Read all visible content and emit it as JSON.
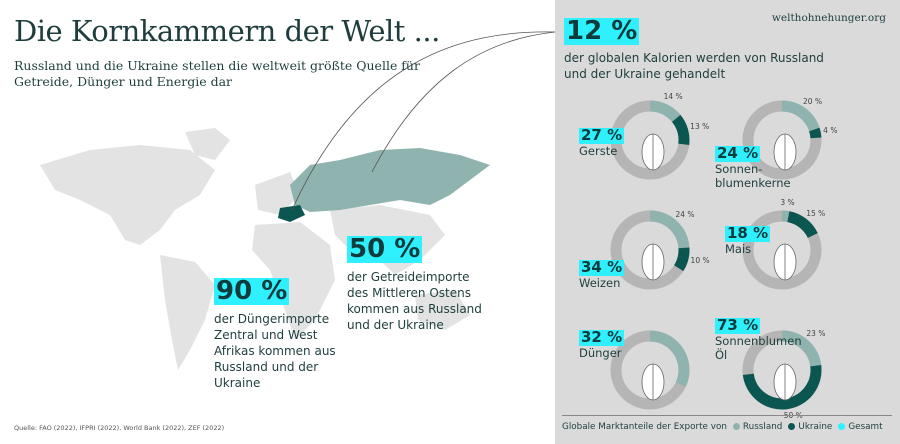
{
  "header": {
    "title": "Die Kornkammern der Welt ...",
    "subtitle": "Russland und die Ukraine stellen die weltweit größte Quelle für Getreide, Dünger und Energie dar",
    "site": "welthohnehunger.org"
  },
  "stats": [
    {
      "value": "90 %",
      "text": "der Düngerimporte Zentral und West Afrikas kommen aus Russland und der Ukraine"
    },
    {
      "value": "50 %",
      "text": "der Getreideimporte des Mittleren Ostens kommen aus Russland und der Ukraine"
    },
    {
      "value": "12 %",
      "text": "der globalen Kalorien werden von Russland und der Ukraine gehandelt"
    }
  ],
  "source": "Quelle: FAO (2022), IFPRI (2022), World Bank (2022), ZEF (2022)",
  "colors": {
    "russland": "#8fb3ae",
    "ukraine": "#0b5651",
    "gesamt": "#2ef0ff",
    "ring": "#b5b5b5"
  },
  "chart_data": {
    "type": "donut",
    "title": "Globale Marktanteile der Exporte von",
    "legend": [
      "Russland",
      "Ukraine",
      "Gesamt"
    ],
    "items": [
      {
        "name": "Gerste",
        "total": "27 %",
        "russland": 14,
        "ukraine": 13,
        "russland_label": "14 %",
        "ukraine_label": "13 %",
        "icon": "barley-icon"
      },
      {
        "name": "Sonnen-\nblumenkerne",
        "total": "24 %",
        "russland": 20,
        "ukraine": 4,
        "russland_label": "20 %",
        "ukraine_label": "4 %",
        "icon": "sunflower-icon"
      },
      {
        "name": "Weizen",
        "total": "34 %",
        "russland": 24,
        "ukraine": 10,
        "russland_label": "24 %",
        "ukraine_label": "10 %",
        "icon": "wheat-icon"
      },
      {
        "name": "Mais",
        "total": "18 %",
        "russland": 3,
        "ukraine": 15,
        "russland_label": "3 %",
        "ukraine_label": "15 %",
        "icon": "corn-icon"
      },
      {
        "name": "Dünger",
        "total": "32 %",
        "russland": 32,
        "ukraine": 0,
        "icon": "fertilizer-bag-icon"
      },
      {
        "name": "Sonnenblumen\nÖl",
        "total": "73 %",
        "russland": 23,
        "ukraine": 50,
        "russland_label": "23 %",
        "ukraine_label": "50 %",
        "icon": "oil-bottle-icon"
      }
    ]
  }
}
